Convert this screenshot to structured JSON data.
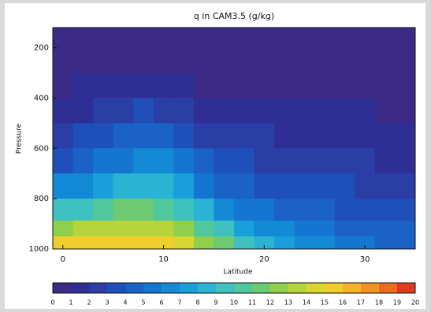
{
  "chart_data": {
    "type": "contour",
    "title": "q in CAM3.5 (g/kg)",
    "x_label": "Latitude",
    "y_label": "Pressure",
    "xlim": [
      -1,
      35
    ],
    "xticks": [
      0,
      10,
      20,
      30
    ],
    "ylim": [
      1000,
      120
    ],
    "yticks": [
      200,
      400,
      600,
      800,
      1000
    ],
    "x": [
      0,
      2,
      4,
      6,
      8,
      10,
      12,
      14,
      16,
      18,
      20,
      22,
      24,
      26,
      28,
      30,
      32,
      34
    ],
    "y": [
      150,
      250,
      350,
      450,
      550,
      650,
      750,
      850,
      925,
      975
    ],
    "z": [
      [
        0.3,
        0.3,
        0.3,
        0.3,
        0.3,
        0.3,
        0.3,
        0.3,
        0.3,
        0.3,
        0.3,
        0.3,
        0.3,
        0.3,
        0.3,
        0.3,
        0.3,
        0.3
      ],
      [
        0.6,
        0.6,
        0.7,
        0.8,
        0.8,
        0.8,
        0.7,
        0.6,
        0.5,
        0.5,
        0.5,
        0.5,
        0.5,
        0.5,
        0.5,
        0.5,
        0.5,
        0.5
      ],
      [
        0.9,
        1.0,
        1.2,
        1.5,
        1.6,
        1.5,
        1.2,
        0.9,
        0.8,
        0.7,
        0.7,
        0.7,
        0.7,
        0.6,
        0.6,
        0.6,
        0.6,
        0.6
      ],
      [
        1.4,
        1.8,
        2.3,
        2.8,
        3.0,
        2.8,
        2.4,
        1.8,
        1.5,
        1.4,
        1.3,
        1.2,
        1.2,
        1.1,
        1.0,
        1.0,
        0.9,
        0.9
      ],
      [
        2.5,
        3.0,
        3.6,
        4.2,
        4.5,
        4.3,
        3.8,
        2.9,
        2.4,
        2.2,
        2.0,
        1.9,
        1.8,
        1.7,
        1.6,
        1.5,
        1.4,
        1.3
      ],
      [
        3.8,
        4.4,
        5.2,
        5.8,
        6.2,
        6.0,
        5.4,
        4.2,
        3.4,
        3.0,
        2.8,
        2.6,
        2.5,
        2.4,
        2.2,
        2.0,
        1.9,
        1.8
      ],
      [
        6.0,
        6.8,
        7.6,
        8.2,
        8.5,
        8.3,
        7.4,
        5.9,
        4.8,
        4.2,
        3.8,
        3.5,
        3.4,
        3.2,
        3.0,
        2.8,
        2.6,
        2.5
      ],
      [
        9.0,
        9.8,
        10.5,
        11.0,
        11.2,
        10.8,
        9.8,
        8.0,
        6.6,
        5.7,
        5.0,
        4.5,
        4.3,
        4.0,
        3.8,
        3.6,
        3.4,
        3.2
      ],
      [
        12.5,
        13.0,
        13.4,
        13.6,
        13.5,
        13.0,
        12.0,
        10.5,
        9.0,
        7.8,
        6.8,
        6.0,
        5.4,
        5.0,
        4.7,
        4.4,
        4.2,
        4.0
      ],
      [
        15.2,
        15.6,
        15.8,
        15.8,
        15.5,
        15.0,
        14.0,
        12.5,
        11.0,
        9.5,
        8.3,
        7.3,
        6.6,
        6.0,
        5.6,
        5.2,
        4.9,
        4.6
      ]
    ],
    "levels": [
      0,
      1,
      2,
      3,
      4,
      5,
      6,
      7,
      8,
      9,
      10,
      11,
      12,
      13,
      14,
      15,
      16,
      17,
      18,
      19,
      20
    ],
    "colors": [
      "#3b2a86",
      "#2e2f95",
      "#2a3ea6",
      "#1f4fb8",
      "#1a62c6",
      "#1576cf",
      "#128ad6",
      "#19a0da",
      "#2ab3d3",
      "#3fc1bf",
      "#4fc89e",
      "#6ccb72",
      "#8fcf4c",
      "#b7d43a",
      "#d8d631",
      "#f0cf2c",
      "#f6b326",
      "#f39121",
      "#ec6a1e",
      "#e03a1c"
    ]
  }
}
